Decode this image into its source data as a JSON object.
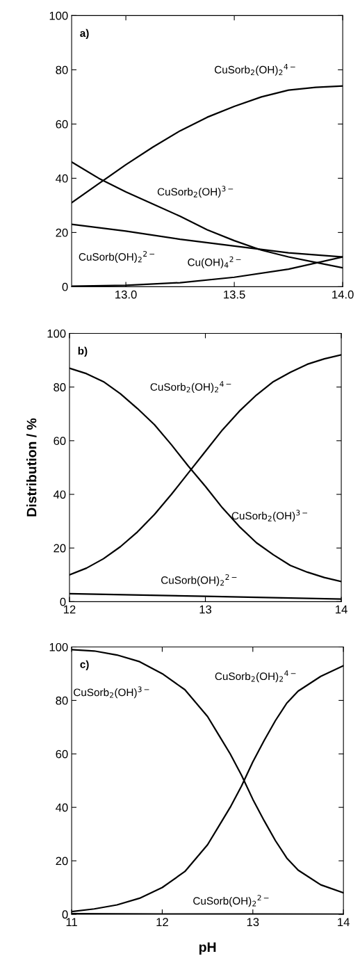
{
  "chart_data": [
    {
      "type": "line",
      "xlim": [
        12.75,
        14.0
      ],
      "xticks": [
        {
          "value": 13.0,
          "label": "13.0"
        },
        {
          "value": 13.5,
          "label": "13.5"
        },
        {
          "value": 14.0,
          "label": "14.0"
        }
      ],
      "ylim": [
        0,
        100
      ],
      "yticks": [
        0,
        20,
        40,
        60,
        80,
        100
      ],
      "grid": false,
      "legend": false,
      "series": [
        {
          "name": "CuSorb$_{2}$(OH)$_{2}$$^{4−}$",
          "color": "#000000",
          "x": [
            12.75,
            12.875,
            13.0,
            13.125,
            13.25,
            13.375,
            13.5,
            13.625,
            13.75,
            13.875,
            14.0
          ],
          "values": [
            31,
            38,
            45,
            51.5,
            57.5,
            62.5,
            66.5,
            70,
            72.5,
            73.5,
            74
          ]
        },
        {
          "name": "CuSorb$_{2}$(OH)$^{3−}$",
          "color": "#000000",
          "x": [
            12.75,
            12.875,
            13.0,
            13.125,
            13.25,
            13.375,
            13.5,
            13.625,
            13.75,
            13.875,
            14.0
          ],
          "values": [
            46,
            40,
            35,
            30.5,
            26,
            21,
            17,
            13.5,
            11,
            9,
            7
          ]
        },
        {
          "name": "CuSorb(OH)$_{2}$$^{2−}$",
          "color": "#000000",
          "x": [
            12.75,
            13.0,
            13.25,
            13.5,
            13.75,
            14.0
          ],
          "values": [
            23,
            20.5,
            17.5,
            15,
            12.5,
            11
          ]
        },
        {
          "name": "Cu(OH)$_{4}$$^{2−}$",
          "color": "#000000",
          "x": [
            12.75,
            13.0,
            13.25,
            13.5,
            13.75,
            14.0
          ],
          "values": [
            0.2,
            0.5,
            1.5,
            3.5,
            6.5,
            11
          ]
        }
      ],
      "annotations": [
        "a)"
      ]
    },
    {
      "type": "line",
      "xlim": [
        12,
        14
      ],
      "xticks": [
        12,
        13,
        14
      ],
      "ylim": [
        0,
        100
      ],
      "yticks": [
        0,
        20,
        40,
        60,
        80,
        100
      ],
      "ylabel": "Distribution / %",
      "grid": false,
      "legend": false,
      "series": [
        {
          "name": "CuSorb$_{2}$(OH)$_{2}$$^{4−}$",
          "color": "#000000",
          "x": [
            12.0,
            12.125,
            12.25,
            12.375,
            12.5,
            12.625,
            12.75,
            12.875,
            13.0,
            13.125,
            13.25,
            13.375,
            13.5,
            13.625,
            13.75,
            13.875,
            14.0
          ],
          "values": [
            10,
            12.5,
            16,
            20.5,
            26,
            32.5,
            40,
            48,
            56,
            64,
            71,
            77,
            82,
            85.5,
            88.5,
            90.5,
            92
          ]
        },
        {
          "name": "CuSorb$_{2}$(OH)$^{3−}$",
          "color": "#000000",
          "x": [
            12.0,
            12.125,
            12.25,
            12.375,
            12.5,
            12.625,
            12.75,
            12.875,
            13.0,
            13.125,
            13.25,
            13.375,
            13.5,
            13.625,
            13.75,
            13.875,
            14.0
          ],
          "values": [
            87,
            85,
            82,
            77.5,
            72,
            66,
            58.5,
            50.5,
            43,
            35,
            28,
            22,
            17.5,
            13.5,
            11,
            9,
            7.5
          ]
        },
        {
          "name": "CuSorb(OH)$_{2}$$^{2−}$",
          "color": "#000000",
          "x": [
            12.0,
            13.0,
            14.0
          ],
          "values": [
            3,
            2,
            1
          ]
        }
      ],
      "annotations": [
        "b)"
      ]
    },
    {
      "type": "line",
      "xlim": [
        11,
        14
      ],
      "xticks": [
        11,
        12,
        13,
        14
      ],
      "ylim": [
        0,
        100
      ],
      "yticks": [
        0,
        20,
        40,
        60,
        80,
        100
      ],
      "xlabel": "pH",
      "grid": false,
      "legend": false,
      "series": [
        {
          "name": "CuSorb$_{2}$(OH)$^{3−}$",
          "color": "#000000",
          "x": [
            11.0,
            11.25,
            11.5,
            11.75,
            12.0,
            12.25,
            12.5,
            12.625,
            12.75,
            12.875,
            13.0,
            13.125,
            13.25,
            13.375,
            13.5,
            13.75,
            14.0
          ],
          "values": [
            99,
            98.5,
            97,
            94.5,
            90,
            84,
            74,
            67,
            60,
            52,
            43,
            35,
            27.5,
            21,
            16.5,
            11,
            8
          ]
        },
        {
          "name": "CuSorb$_{2}$(OH)$_{2}$$^{4−}$",
          "color": "#000000",
          "x": [
            11.0,
            11.25,
            11.5,
            11.75,
            12.0,
            12.25,
            12.5,
            12.625,
            12.75,
            12.875,
            13.0,
            13.125,
            13.25,
            13.375,
            13.5,
            13.75,
            14.0
          ],
          "values": [
            1,
            2,
            3.5,
            6,
            10,
            16,
            26,
            33,
            40,
            48,
            57,
            65,
            72.5,
            79,
            83.5,
            89,
            93
          ]
        },
        {
          "name": "CuSorb(OH)$_{2}$$^{2−}$",
          "color": "#000000",
          "x": [
            11.0,
            12.0,
            13.0,
            14.0
          ],
          "values": [
            0.2,
            0.1,
            0.1,
            0
          ]
        }
      ],
      "annotations": [
        "c)"
      ]
    }
  ]
}
